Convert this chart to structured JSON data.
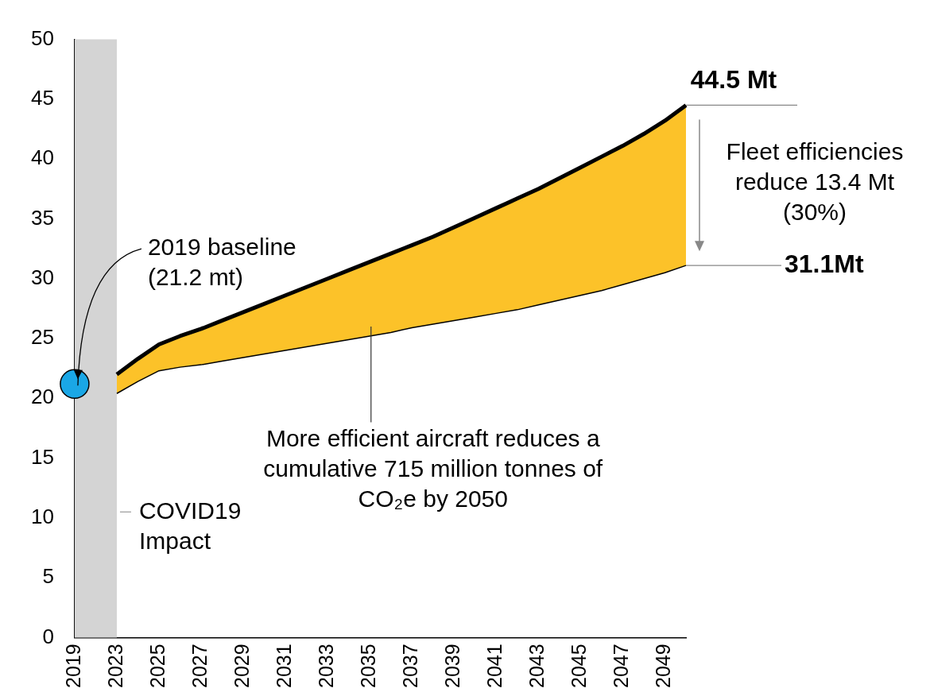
{
  "chart_data": {
    "type": "line",
    "categories": [
      "2019",
      null,
      "2023",
      null,
      "2025",
      null,
      "2027",
      null,
      "2029",
      null,
      "2031",
      null,
      "2033",
      null,
      "2035",
      null,
      "2037",
      null,
      "2039",
      null,
      "2041",
      null,
      "2043",
      null,
      "2045",
      null,
      "2047",
      null,
      "2049",
      null
    ],
    "series": [
      {
        "color": "#000000",
        "values": [
          null,
          null,
          20.4,
          21.4,
          22.3,
          22.6,
          22.8,
          23.1,
          23.4,
          23.7,
          24.0,
          24.3,
          24.6,
          24.9,
          25.2,
          25.5,
          25.9,
          26.2,
          26.5,
          26.8,
          27.1,
          27.4,
          27.8,
          28.2,
          28.6,
          29.0,
          29.5,
          30.0,
          30.5,
          31.1
        ]
      },
      {
        "type": "area",
        "color": "#fcc229",
        "values": [
          null,
          null,
          22.0,
          23.3,
          24.5,
          25.2,
          25.8,
          26.5,
          27.2,
          27.9,
          28.6,
          29.3,
          30.0,
          30.7,
          31.4,
          32.1,
          32.8,
          33.5,
          34.3,
          35.1,
          35.9,
          36.7,
          37.5,
          38.4,
          39.3,
          40.2,
          41.1,
          42.1,
          43.2,
          44.5
        ]
      },
      {
        "type": "scatter",
        "color": "#1aa7e6",
        "marker": "circle",
        "values": [
          21.2,
          null,
          null,
          null,
          null,
          null,
          null,
          null,
          null,
          null,
          null,
          null,
          null,
          null,
          null,
          null,
          null,
          null,
          null,
          null,
          null,
          null,
          null,
          null,
          null,
          null,
          null,
          null,
          null,
          null
        ]
      }
    ],
    "ylim": [
      0,
      50
    ],
    "yticks": [
      0,
      5,
      10,
      15,
      20,
      25,
      30,
      35,
      40,
      45,
      50
    ],
    "grid": false,
    "legend": false,
    "bands": [
      {
        "axis": "x",
        "from": "2019",
        "to": "2023",
        "label": "COVID19 Impact",
        "color": "#d4d4d4"
      }
    ],
    "annotations": [
      "44.5 Mt",
      "31.1Mt",
      "Fleet efficiencies reduce 13.4 Mt (30%)",
      {
        "text": "2019 baseline (21.2 mt)",
        "x": "2019",
        "y": 21.2
      },
      "More efficient aircraft reduces a cumulative 715 million tonnes of CO₂e by 2050"
    ]
  }
}
